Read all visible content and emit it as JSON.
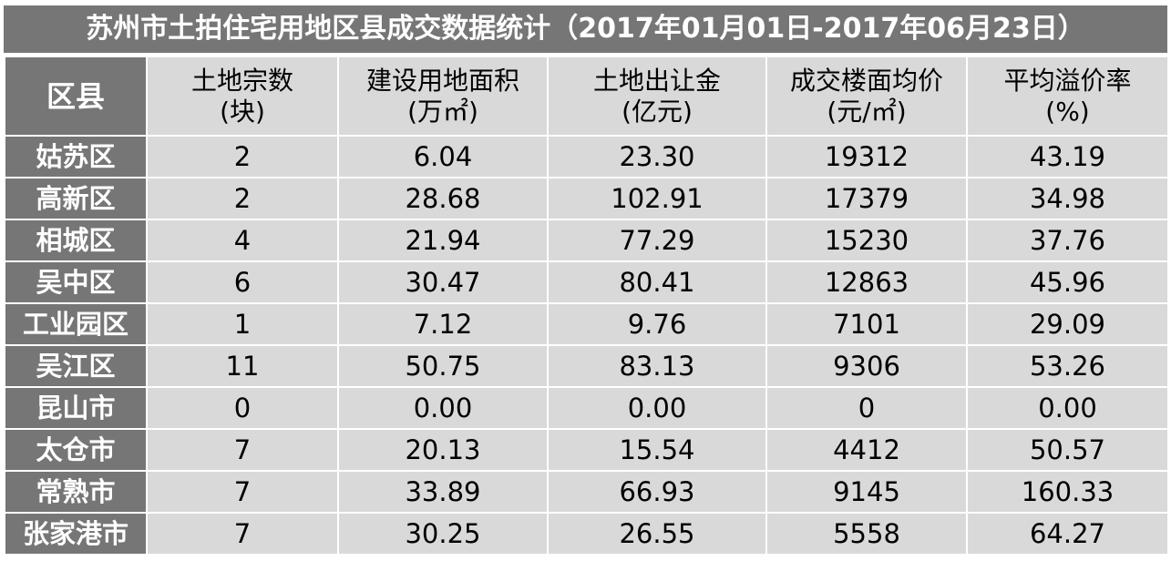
{
  "title": "苏州市土拍住宅用地区县成交数据统计（2017年01月01日-2017年06月23日）",
  "colors": {
    "dark_cell": "#767676",
    "light_cell": "#d9d9d9"
  },
  "headers": [
    {
      "line1": "区县",
      "line2": ""
    },
    {
      "line1": "土地宗数",
      "line2": "(块)"
    },
    {
      "line1": "建设用地面积",
      "line2": "(万㎡)"
    },
    {
      "line1": "土地出让金",
      "line2": "(亿元)"
    },
    {
      "line1": "成交楼面均价",
      "line2": "(元/㎡)"
    },
    {
      "line1": "平均溢价率",
      "line2": "(%)"
    }
  ],
  "rows": [
    [
      "姑苏区",
      "2",
      "6.04",
      "23.30",
      "19312",
      "43.19"
    ],
    [
      "高新区",
      "2",
      "28.68",
      "102.91",
      "17379",
      "34.98"
    ],
    [
      "相城区",
      "4",
      "21.94",
      "77.29",
      "15230",
      "37.76"
    ],
    [
      "吴中区",
      "6",
      "30.47",
      "80.41",
      "12863",
      "45.96"
    ],
    [
      "工业园区",
      "1",
      "7.12",
      "9.76",
      "7101",
      "29.09"
    ],
    [
      "吴江区",
      "11",
      "50.75",
      "83.13",
      "9306",
      "53.26"
    ],
    [
      "昆山市",
      "0",
      "0.00",
      "0.00",
      "0",
      "0.00"
    ],
    [
      "太仓市",
      "7",
      "20.13",
      "15.54",
      "4412",
      "50.57"
    ],
    [
      "常熟市",
      "7",
      "33.89",
      "66.93",
      "9145",
      "160.33"
    ],
    [
      "张家港市",
      "7",
      "30.25",
      "26.55",
      "5558",
      "64.27"
    ]
  ]
}
